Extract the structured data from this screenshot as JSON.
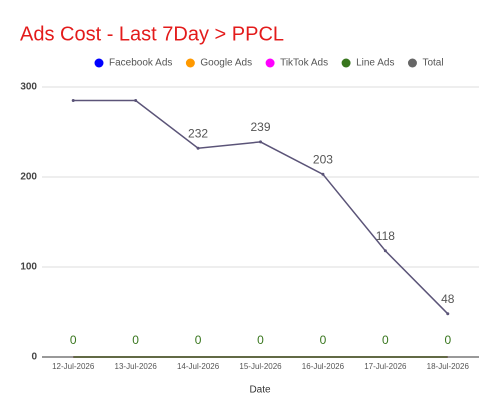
{
  "chart_data": {
    "type": "line",
    "title": "Ads Cost - Last 7Day > PPCL",
    "x_label": "Date",
    "categories": [
      "12-Jul-2026",
      "13-Jul-2026",
      "14-Jul-2026",
      "15-Jul-2026",
      "16-Jul-2026",
      "17-Jul-2026",
      "18-Jul-2026"
    ],
    "series": [
      {
        "name": "Facebook Ads",
        "color": "#0000ff",
        "values": [
          0,
          0,
          0,
          0,
          0,
          0,
          0
        ]
      },
      {
        "name": "Google Ads",
        "color": "#ff9900",
        "values": [
          0,
          0,
          0,
          0,
          0,
          0,
          0
        ]
      },
      {
        "name": "TikTok Ads",
        "color": "#ff00ff",
        "values": [
          0,
          0,
          0,
          0,
          0,
          0,
          0
        ]
      },
      {
        "name": "Line Ads",
        "color": "#38761d",
        "values": [
          0,
          0,
          0,
          0,
          0,
          0,
          0
        ],
        "value_labels": [
          "0",
          "0",
          "0",
          "0",
          "0",
          "0",
          "0"
        ]
      },
      {
        "name": "Total",
        "color": "#5b5478",
        "values": [
          285,
          285,
          232,
          239,
          203,
          118,
          48
        ],
        "value_labels": [
          null,
          null,
          "232",
          "239",
          "203",
          "118",
          "48"
        ]
      }
    ],
    "ylim": [
      0,
      300
    ],
    "yticks": [
      0,
      100,
      200,
      300
    ],
    "grid": true,
    "legend": "top"
  }
}
